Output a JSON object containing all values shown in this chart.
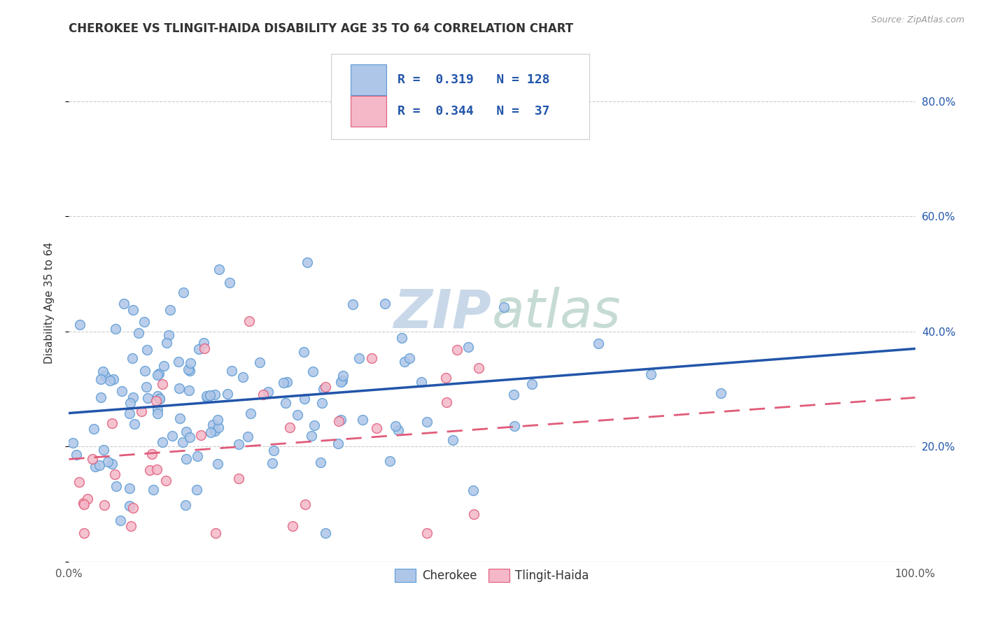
{
  "title": "CHEROKEE VS TLINGIT-HAIDA DISABILITY AGE 35 TO 64 CORRELATION CHART",
  "source_text": "Source: ZipAtlas.com",
  "ylabel": "Disability Age 35 to 64",
  "xlim": [
    0.0,
    1.0
  ],
  "ylim": [
    0.0,
    0.9
  ],
  "xticks": [
    0.0,
    0.2,
    0.4,
    0.6,
    0.8,
    1.0
  ],
  "xtick_labels": [
    "0.0%",
    "",
    "",
    "",
    "",
    "100.0%"
  ],
  "yticks": [
    0.0,
    0.2,
    0.4,
    0.6,
    0.8
  ],
  "right_yticks": [
    0.2,
    0.4,
    0.6,
    0.8
  ],
  "right_ytick_labels": [
    "20.0%",
    "40.0%",
    "60.0%",
    "80.0%"
  ],
  "cherokee_color": "#aec6e8",
  "cherokee_edge_color": "#5b9bd5",
  "tlingit_color": "#f4b8c8",
  "tlingit_edge_color": "#e05c7a",
  "cherokee_line_color": "#2255aa",
  "tlingit_line_color": "#e05c7a",
  "legend_text_color": "#2255aa",
  "R_cherokee": 0.319,
  "N_cherokee": 128,
  "R_tlingit": 0.344,
  "N_tlingit": 37,
  "cherokee_trend_y0": 0.258,
  "cherokee_trend_y1": 0.37,
  "tlingit_trend_y0": 0.178,
  "tlingit_trend_y1": 0.285,
  "watermark_color": "#c8d8e8",
  "cherokee_seed": 12345,
  "tlingit_seed": 67890
}
